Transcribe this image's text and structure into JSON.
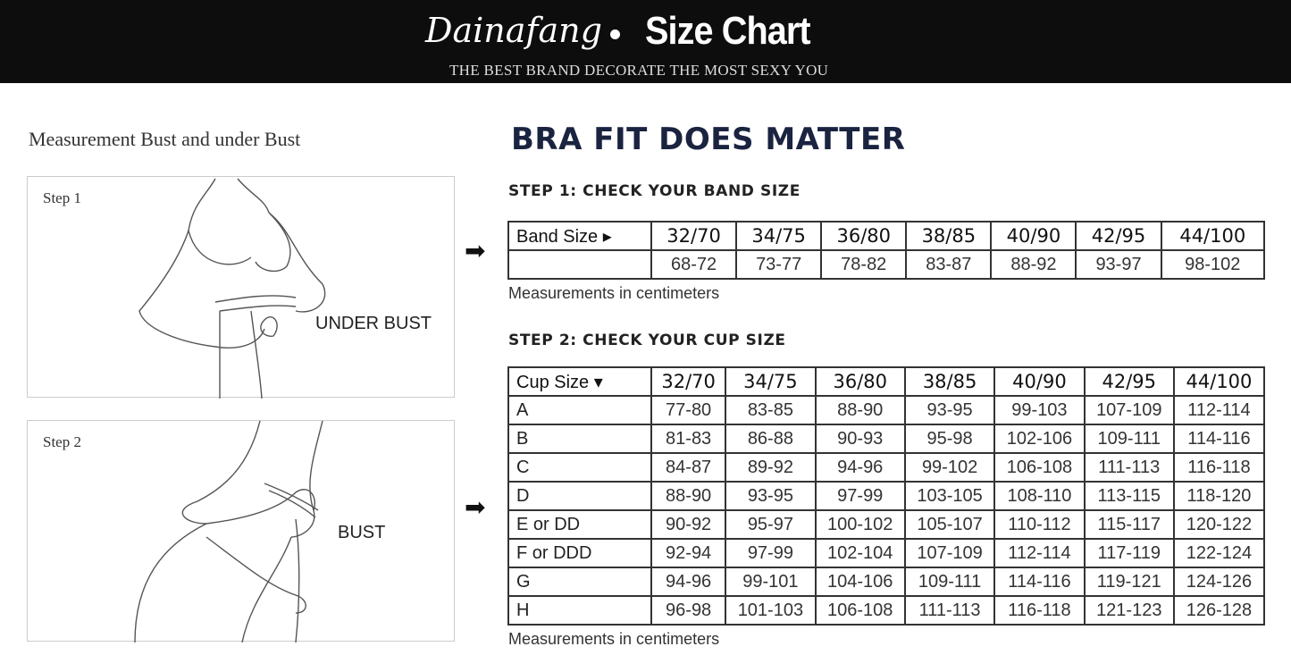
{
  "header": {
    "brand": "Dainafang",
    "title": "Size Chart",
    "tagline": "THE BEST BRAND DECORATE THE MOST SEXY YOU"
  },
  "left": {
    "title": "Measurement Bust and under Bust",
    "step1": {
      "label": "Step 1",
      "caption": "UNDER BUST"
    },
    "step2": {
      "label": "Step 2",
      "caption": "BUST"
    }
  },
  "main": {
    "title": "BRA FIT DOES MATTER",
    "step1_heading": "STEP 1:  CHECK YOUR BAND SIZE",
    "step2_heading": "STEP 2:  CHECK YOUR CUP SIZE",
    "arrow_icon": "right-arrow",
    "band_table": {
      "header": "Band Size ▸",
      "columns": [
        "32/70",
        "34/75",
        "36/80",
        "38/85",
        "40/90",
        "42/95",
        "44/100"
      ],
      "rows": [
        {
          "label": "",
          "values": [
            "68-72",
            "73-77",
            "78-82",
            "83-87",
            "88-92",
            "93-97",
            "98-102"
          ]
        }
      ]
    },
    "band_note": "Measurements in centimeters",
    "cup_table": {
      "header": "Cup Size ▾",
      "columns": [
        "32/70",
        "34/75",
        "36/80",
        "38/85",
        "40/90",
        "42/95",
        "44/100"
      ],
      "rows": [
        {
          "label": "A",
          "values": [
            "77-80",
            "83-85",
            "88-90",
            "93-95",
            "99-103",
            "107-109",
            "112-114"
          ]
        },
        {
          "label": "B",
          "values": [
            "81-83",
            "86-88",
            "90-93",
            "95-98",
            "102-106",
            "109-111",
            "114-116"
          ]
        },
        {
          "label": "C",
          "values": [
            "84-87",
            "89-92",
            "94-96",
            "99-102",
            "106-108",
            "111-113",
            "116-118"
          ]
        },
        {
          "label": "D",
          "values": [
            "88-90",
            "93-95",
            "97-99",
            "103-105",
            "108-110",
            "113-115",
            "118-120"
          ]
        },
        {
          "label": "E or DD",
          "values": [
            "90-92",
            "95-97",
            "100-102",
            "105-107",
            "110-112",
            "115-117",
            "120-122"
          ]
        },
        {
          "label": "F or DDD",
          "values": [
            "92-94",
            "97-99",
            "102-104",
            "107-109",
            "112-114",
            "117-119",
            "122-124"
          ]
        },
        {
          "label": "G",
          "values": [
            "94-96",
            "99-101",
            "104-106",
            "109-111",
            "114-116",
            "119-121",
            "124-126"
          ]
        },
        {
          "label": "H",
          "values": [
            "96-98",
            "101-103",
            "106-108",
            "111-113",
            "116-118",
            "121-123",
            "126-128"
          ]
        }
      ]
    },
    "cup_note": "Measurements in centimeters"
  }
}
